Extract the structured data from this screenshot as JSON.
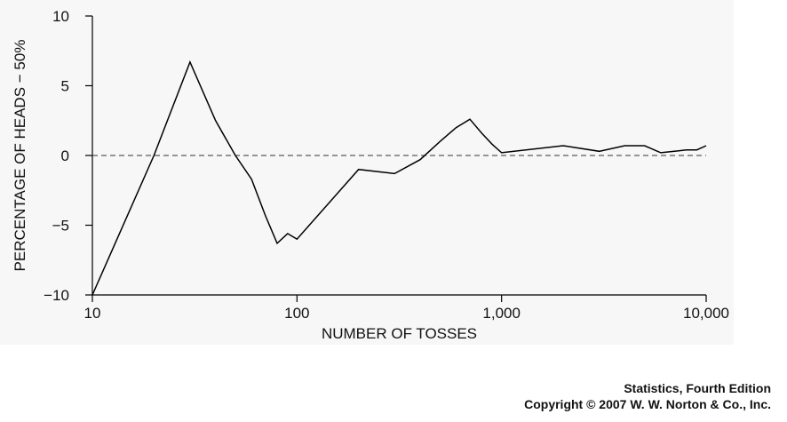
{
  "chart_data": {
    "type": "line",
    "title": "",
    "xlabel": "NUMBER OF TOSSES",
    "ylabel": "PERCENTAGE OF HEADS − 50%",
    "x_scale": "log",
    "xlim": [
      10,
      10000
    ],
    "ylim": [
      -10,
      10
    ],
    "x_ticks": [
      10,
      100,
      1000,
      10000
    ],
    "x_tick_labels": [
      "10",
      "100",
      "1,000",
      "10,000"
    ],
    "y_ticks": [
      10,
      5,
      0,
      -5,
      -10
    ],
    "y_tick_labels": [
      "10",
      "5",
      "0",
      "−5",
      "−10"
    ],
    "reference_line": {
      "y": 0,
      "style": "dashed"
    },
    "grid": false,
    "line_color": "#000000",
    "series": [
      {
        "x": [
          10,
          20,
          30,
          40,
          50,
          60,
          70,
          80,
          90,
          100,
          200,
          300,
          400,
          500,
          600,
          700,
          800,
          900,
          1000,
          2000,
          3000,
          4000,
          5000,
          6000,
          7000,
          8000,
          9000,
          10000
        ],
        "values": [
          -10,
          0,
          6.7,
          2.5,
          0.0,
          -1.7,
          -4.3,
          -6.3,
          -5.6,
          -6.0,
          -1.0,
          -1.3,
          -0.3,
          1.0,
          2.0,
          2.6,
          1.6,
          0.8,
          0.2,
          0.7,
          0.3,
          0.7,
          0.7,
          0.2,
          0.3,
          0.4,
          0.4,
          0.7
        ]
      }
    ]
  },
  "credit": {
    "book": "Statistics, Fourth Edition",
    "copyright": "Copyright © 2007 W. W. Norton & Co., Inc."
  }
}
